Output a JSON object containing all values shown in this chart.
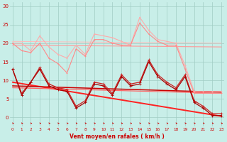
{
  "x": [
    0,
    1,
    2,
    3,
    4,
    5,
    6,
    7,
    8,
    9,
    10,
    11,
    12,
    13,
    14,
    15,
    16,
    17,
    18,
    19,
    20,
    21,
    22,
    23
  ],
  "bg_color": "#c8eee8",
  "grid_color": "#a0ccc4",
  "label_color": "#cc0000",
  "xlabel": "Vent moyen/en rafales ( km/h )",
  "xlim": [
    -0.3,
    23.3
  ],
  "ylim": [
    -2.5,
    31
  ],
  "yticks": [
    0,
    5,
    10,
    15,
    20,
    25,
    30
  ],
  "series": [
    {
      "name": "light_pink_jagged",
      "color": "#ffaaaa",
      "lw": 0.8,
      "ms": 2.0,
      "y": [
        20.0,
        20.0,
        18.0,
        22.0,
        19.0,
        17.0,
        16.0,
        19.5,
        17.0,
        22.5,
        22.0,
        21.5,
        20.5,
        19.5,
        27.0,
        23.5,
        21.0,
        20.5,
        20.0,
        14.0,
        7.0,
        7.0,
        7.0,
        7.0
      ]
    },
    {
      "name": "medium_pink_jagged",
      "color": "#ff8888",
      "lw": 0.8,
      "ms": 2.0,
      "y": [
        20.0,
        18.0,
        17.5,
        20.0,
        16.0,
        14.5,
        12.0,
        18.5,
        16.5,
        21.0,
        21.0,
        20.0,
        19.5,
        19.5,
        25.5,
        22.5,
        20.5,
        19.5,
        19.5,
        13.0,
        6.5,
        6.5,
        6.5,
        6.5
      ]
    },
    {
      "name": "dark_red_jagged",
      "color": "#cc2222",
      "lw": 0.9,
      "ms": 2.2,
      "y": [
        13.0,
        6.5,
        9.5,
        13.5,
        9.0,
        8.0,
        7.5,
        3.0,
        4.5,
        9.5,
        9.0,
        6.5,
        11.5,
        9.0,
        9.5,
        15.5,
        11.5,
        9.5,
        8.0,
        11.5,
        4.5,
        3.0,
        1.0,
        1.0
      ]
    },
    {
      "name": "dark_red_jagged2",
      "color": "#aa0000",
      "lw": 0.9,
      "ms": 2.2,
      "y": [
        13.0,
        6.0,
        9.5,
        13.0,
        8.5,
        7.5,
        7.0,
        2.5,
        4.0,
        9.0,
        8.5,
        6.0,
        11.0,
        8.5,
        9.0,
        15.0,
        11.0,
        9.0,
        7.5,
        11.0,
        4.0,
        2.5,
        0.5,
        0.5
      ]
    }
  ],
  "trend_lines": [
    {
      "color": "#ff2222",
      "lw": 1.4,
      "y0": 9.5,
      "y1": 0.3
    },
    {
      "color": "#cc0000",
      "lw": 1.1,
      "y0": 8.5,
      "y1": 6.8
    },
    {
      "color": "#ff6666",
      "lw": 0.9,
      "y0": 8.0,
      "y1": 6.5
    },
    {
      "color": "#ff9999",
      "lw": 0.8,
      "y0": 19.5,
      "y1": 19.0
    },
    {
      "color": "#ffbbbb",
      "lw": 0.7,
      "y0": 20.5,
      "y1": 20.0
    }
  ]
}
